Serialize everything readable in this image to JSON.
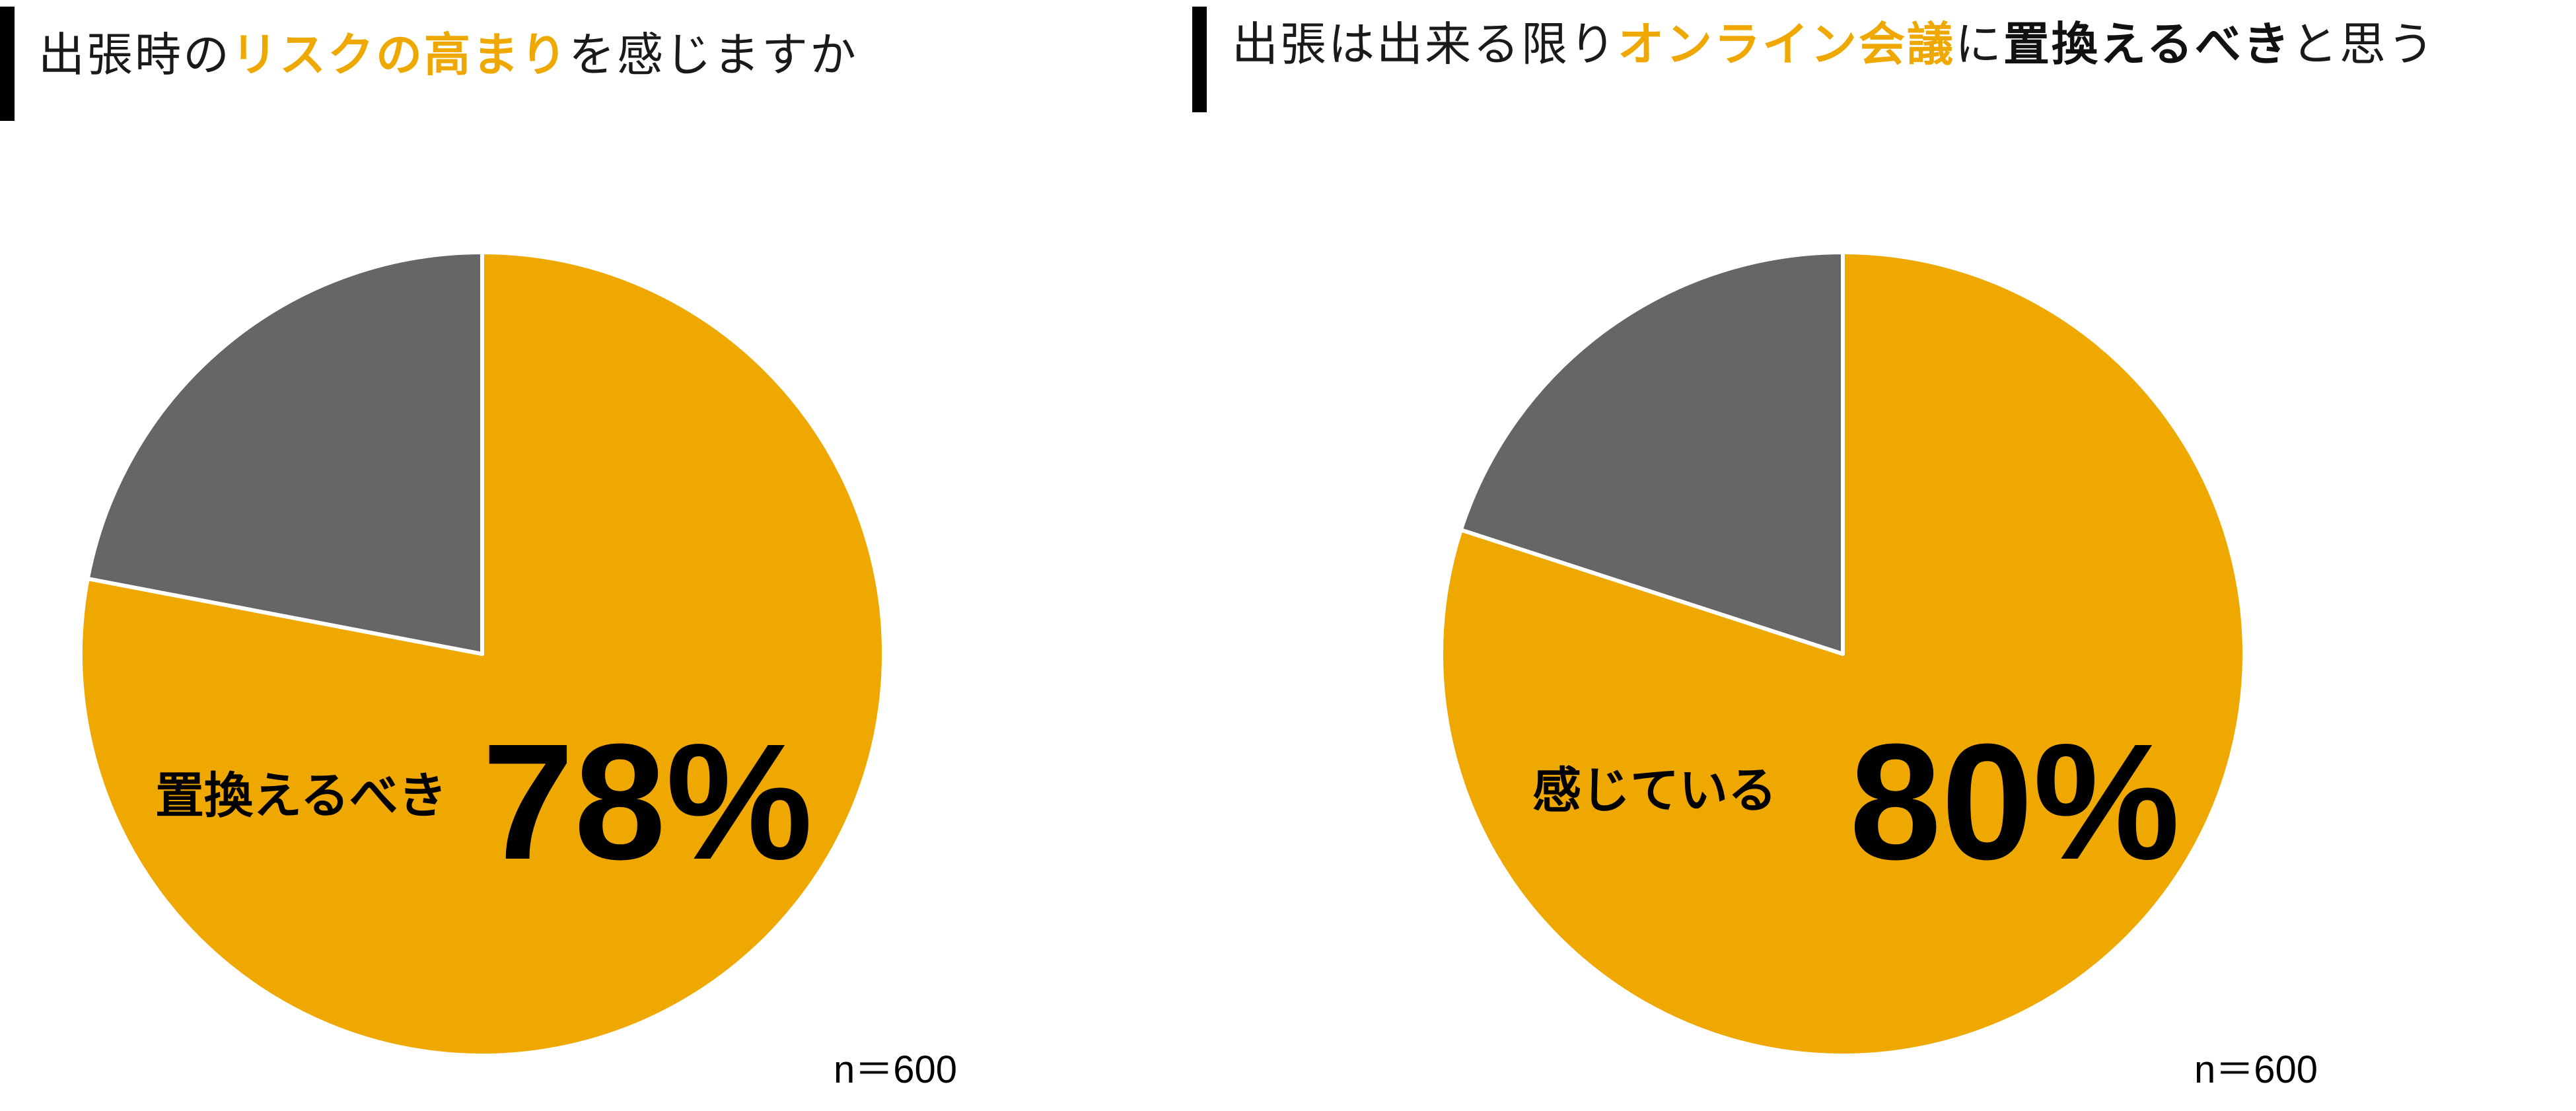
{
  "panels": [
    {
      "title": {
        "prefix": "出張時の",
        "highlight": "リスクの高まり",
        "suffix": "を感じますか"
      },
      "answer_label": "置換えるべき",
      "percent_label": "78%",
      "n_label": "n＝600"
    },
    {
      "title": {
        "prefix": "出張は出来る限り",
        "highlight": "オンライン会議",
        "mid": "に",
        "emphasis": "置換えるべき",
        "suffix": "と思う"
      },
      "answer_label": "感じている",
      "percent_label": "80%",
      "n_label": "n＝600"
    }
  ],
  "colors": {
    "accent": "#EFA800",
    "secondary": "#666666",
    "text": "#000000"
  },
  "chart_data": [
    {
      "type": "pie",
      "title": "出張時のリスクの高まりを感じますか",
      "slices": [
        {
          "label": "置換えるべき",
          "value": 78,
          "color": "#EFA800"
        },
        {
          "label": "",
          "value": 22,
          "color": "#666666"
        }
      ],
      "n": 600
    },
    {
      "type": "pie",
      "title": "出張は出来る限りオンライン会議に置換えるべきと思う",
      "slices": [
        {
          "label": "感じている",
          "value": 80,
          "color": "#EFA800"
        },
        {
          "label": "",
          "value": 20,
          "color": "#666666"
        }
      ],
      "n": 600
    }
  ]
}
